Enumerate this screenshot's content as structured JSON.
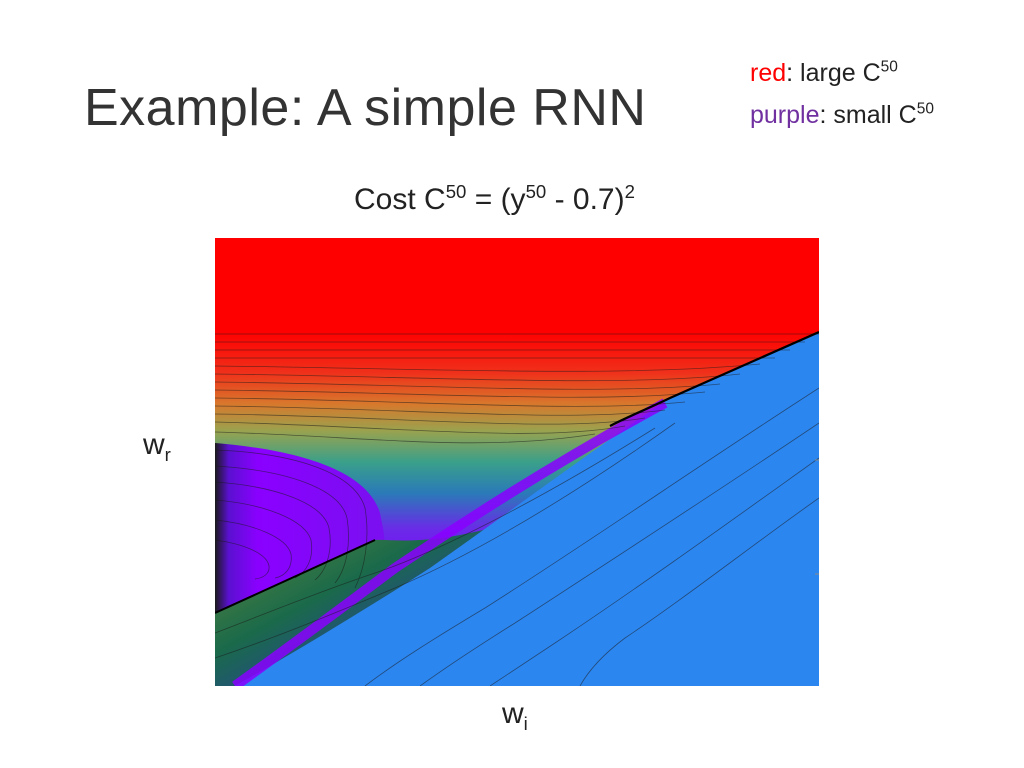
{
  "slide": {
    "title": "Example: A simple RNN",
    "legend": [
      {
        "color_word": "red",
        "color": "#ff0000",
        "text": ": large C",
        "sup": "50"
      },
      {
        "color_word": "purple",
        "color": "#7030a0",
        "text": ": small C",
        "sup": "50"
      }
    ],
    "cost": {
      "prefix": "Cost C",
      "sup1": "50",
      "mid": " = (y",
      "sup2": "50",
      "suffix": " - 0.7)",
      "sup3": "2"
    },
    "axes": {
      "y": {
        "base": "w",
        "sub": "r"
      },
      "x": {
        "base": "w",
        "sub": "i"
      }
    }
  },
  "colors": {
    "large_cost": "#ff0000",
    "small_cost": "#8a00ff",
    "saturated_region": "#2c86f0",
    "contour_line": "#000000"
  }
}
